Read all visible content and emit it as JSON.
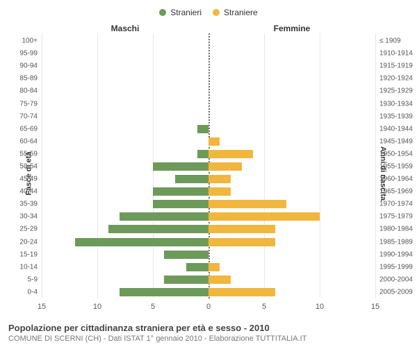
{
  "legend": {
    "male": {
      "label": "Stranieri",
      "color": "#6d9a5b"
    },
    "female": {
      "label": "Straniere",
      "color": "#f1b63e"
    }
  },
  "chart": {
    "type": "population-pyramid",
    "left_title": "Maschi",
    "right_title": "Femmine",
    "y_axis_left_label": "Fasce di età",
    "y_axis_right_label": "Anni di nascita",
    "x_max": 15,
    "x_ticks": [
      15,
      10,
      5,
      0,
      5,
      10,
      15
    ],
    "grid_color": "#e6e6e6",
    "center_line_color": "#707070",
    "background_color": "#ffffff",
    "bar_colors": {
      "male": "#6d9a5b",
      "female": "#f1b63e"
    },
    "rows": [
      {
        "age": "100+",
        "birth": "≤ 1909",
        "m": 0,
        "f": 0
      },
      {
        "age": "95-99",
        "birth": "1910-1914",
        "m": 0,
        "f": 0
      },
      {
        "age": "90-94",
        "birth": "1915-1919",
        "m": 0,
        "f": 0
      },
      {
        "age": "85-89",
        "birth": "1920-1924",
        "m": 0,
        "f": 0
      },
      {
        "age": "80-84",
        "birth": "1925-1929",
        "m": 0,
        "f": 0
      },
      {
        "age": "75-79",
        "birth": "1930-1934",
        "m": 0,
        "f": 0
      },
      {
        "age": "70-74",
        "birth": "1935-1939",
        "m": 0,
        "f": 0
      },
      {
        "age": "65-69",
        "birth": "1940-1944",
        "m": 1,
        "f": 0
      },
      {
        "age": "60-64",
        "birth": "1945-1949",
        "m": 0,
        "f": 1
      },
      {
        "age": "55-59",
        "birth": "1950-1954",
        "m": 1,
        "f": 4
      },
      {
        "age": "50-54",
        "birth": "1955-1959",
        "m": 5,
        "f": 3
      },
      {
        "age": "45-49",
        "birth": "1960-1964",
        "m": 3,
        "f": 2
      },
      {
        "age": "40-44",
        "birth": "1965-1969",
        "m": 5,
        "f": 2
      },
      {
        "age": "35-39",
        "birth": "1970-1974",
        "m": 5,
        "f": 7
      },
      {
        "age": "30-34",
        "birth": "1975-1979",
        "m": 8,
        "f": 10
      },
      {
        "age": "25-29",
        "birth": "1980-1984",
        "m": 9,
        "f": 6
      },
      {
        "age": "20-24",
        "birth": "1985-1989",
        "m": 12,
        "f": 6
      },
      {
        "age": "15-19",
        "birth": "1990-1994",
        "m": 4,
        "f": 0
      },
      {
        "age": "10-14",
        "birth": "1995-1999",
        "m": 2,
        "f": 1
      },
      {
        "age": "5-9",
        "birth": "2000-2004",
        "m": 4,
        "f": 2
      },
      {
        "age": "0-4",
        "birth": "2005-2009",
        "m": 8,
        "f": 6
      }
    ]
  },
  "footer": {
    "title": "Popolazione per cittadinanza straniera per età e sesso - 2010",
    "subtitle": "COMUNE DI SCERNI (CH) - Dati ISTAT 1° gennaio 2010 - Elaborazione TUTTITALIA.IT"
  }
}
